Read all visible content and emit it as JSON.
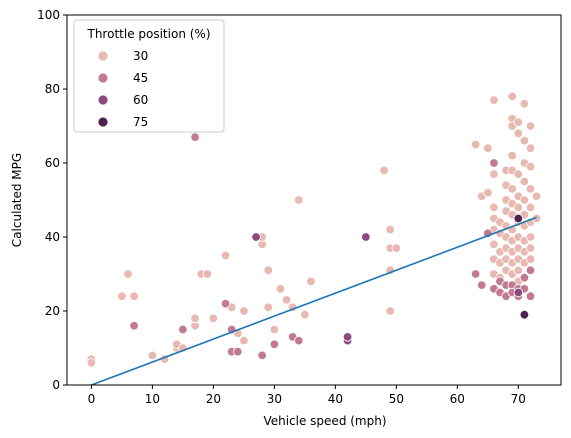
{
  "chart_data": {
    "type": "scatter",
    "xlabel": "Vehicle speed (mph)",
    "ylabel": "Calculated MPG",
    "xlim": [
      -4,
      77
    ],
    "ylim": [
      0,
      100
    ],
    "xticks": [
      0,
      10,
      20,
      30,
      40,
      50,
      60,
      70
    ],
    "yticks": [
      0,
      20,
      40,
      60,
      80,
      100
    ],
    "grid": false,
    "legend": {
      "title": "Throttle position (%)",
      "placement": "top-left",
      "entries": [
        {
          "label": "30",
          "color": "#e8b9b0"
        },
        {
          "label": "45",
          "color": "#c27a93"
        },
        {
          "label": "60",
          "color": "#8c4a7e"
        },
        {
          "label": "75",
          "color": "#4b2250"
        }
      ]
    },
    "trend_line": {
      "color": "#1f77b4",
      "x": [
        0,
        73
      ],
      "y": [
        0,
        45.3
      ]
    },
    "series": [
      {
        "color": "#e8b9b0",
        "points": [
          [
            0,
            7
          ],
          [
            0,
            6
          ],
          [
            5,
            24
          ],
          [
            6,
            30
          ],
          [
            7,
            24
          ],
          [
            10,
            8
          ],
          [
            12,
            7
          ],
          [
            14,
            10
          ],
          [
            14,
            11
          ],
          [
            15,
            10
          ],
          [
            17,
            16
          ],
          [
            17,
            18
          ],
          [
            18,
            30
          ],
          [
            19,
            30
          ],
          [
            20,
            18
          ],
          [
            22,
            35
          ],
          [
            23,
            21
          ],
          [
            24,
            14
          ],
          [
            25,
            12
          ],
          [
            25,
            20
          ],
          [
            28,
            38
          ],
          [
            28,
            40
          ],
          [
            29,
            31
          ],
          [
            29,
            21
          ],
          [
            30,
            15
          ],
          [
            31,
            26
          ],
          [
            32,
            23
          ],
          [
            33,
            21
          ],
          [
            34,
            50
          ],
          [
            35,
            19
          ],
          [
            36,
            28
          ],
          [
            48,
            58
          ],
          [
            49,
            42
          ],
          [
            49,
            37
          ],
          [
            49,
            31
          ],
          [
            49,
            20
          ],
          [
            50,
            37
          ],
          [
            63,
            65
          ],
          [
            64,
            51
          ],
          [
            65,
            52
          ],
          [
            65,
            64
          ],
          [
            66,
            77
          ],
          [
            66,
            57
          ],
          [
            66,
            48
          ],
          [
            66,
            45
          ],
          [
            66,
            42
          ],
          [
            66,
            38
          ],
          [
            66,
            34
          ],
          [
            66,
            30
          ],
          [
            67,
            44
          ],
          [
            67,
            41
          ],
          [
            67,
            36
          ],
          [
            67,
            33
          ],
          [
            67,
            29
          ],
          [
            68,
            58
          ],
          [
            68,
            54
          ],
          [
            68,
            50
          ],
          [
            68,
            47
          ],
          [
            68,
            43
          ],
          [
            68,
            40
          ],
          [
            68,
            37
          ],
          [
            68,
            34
          ],
          [
            68,
            31
          ],
          [
            68,
            27
          ],
          [
            69,
            78
          ],
          [
            69,
            72
          ],
          [
            69,
            70
          ],
          [
            69,
            62
          ],
          [
            69,
            58
          ],
          [
            69,
            53
          ],
          [
            69,
            49
          ],
          [
            69,
            46
          ],
          [
            69,
            42
          ],
          [
            69,
            39
          ],
          [
            69,
            36
          ],
          [
            69,
            33
          ],
          [
            69,
            30
          ],
          [
            70,
            71
          ],
          [
            70,
            68
          ],
          [
            70,
            57
          ],
          [
            70,
            51
          ],
          [
            70,
            48
          ],
          [
            70,
            44
          ],
          [
            70,
            40
          ],
          [
            70,
            37
          ],
          [
            70,
            34
          ],
          [
            70,
            31
          ],
          [
            70,
            28
          ],
          [
            71,
            76
          ],
          [
            71,
            66
          ],
          [
            71,
            60
          ],
          [
            71,
            55
          ],
          [
            71,
            50
          ],
          [
            71,
            46
          ],
          [
            71,
            43
          ],
          [
            71,
            39
          ],
          [
            71,
            36
          ],
          [
            71,
            33
          ],
          [
            71,
            29
          ],
          [
            72,
            70
          ],
          [
            72,
            64
          ],
          [
            72,
            59
          ],
          [
            72,
            53
          ],
          [
            72,
            48
          ],
          [
            72,
            44
          ],
          [
            72,
            40
          ],
          [
            72,
            37
          ],
          [
            72,
            34
          ],
          [
            73,
            51
          ],
          [
            73,
            45
          ]
        ]
      },
      {
        "color": "#c27a93",
        "points": [
          [
            7,
            16
          ],
          [
            15,
            15
          ],
          [
            17,
            67
          ],
          [
            22,
            22
          ],
          [
            23,
            15
          ],
          [
            23,
            9
          ],
          [
            24,
            9
          ],
          [
            28,
            8
          ],
          [
            30,
            11
          ],
          [
            33,
            13
          ],
          [
            34,
            12
          ],
          [
            63,
            30
          ],
          [
            64,
            27
          ],
          [
            65,
            41
          ],
          [
            66,
            60
          ],
          [
            66,
            26
          ],
          [
            67,
            28
          ],
          [
            67,
            25
          ],
          [
            68,
            27
          ],
          [
            68,
            24
          ],
          [
            69,
            27
          ],
          [
            69,
            25
          ],
          [
            70,
            26
          ],
          [
            70,
            24
          ],
          [
            71,
            29
          ],
          [
            71,
            26
          ],
          [
            72,
            24
          ],
          [
            72,
            31
          ]
        ]
      },
      {
        "color": "#8c4a7e",
        "points": [
          [
            27,
            40
          ],
          [
            42,
            12
          ],
          [
            42,
            13
          ],
          [
            45,
            40
          ],
          [
            70,
            25
          ]
        ]
      },
      {
        "color": "#4b2250",
        "points": [
          [
            70,
            45
          ],
          [
            71,
            19
          ]
        ]
      }
    ]
  }
}
